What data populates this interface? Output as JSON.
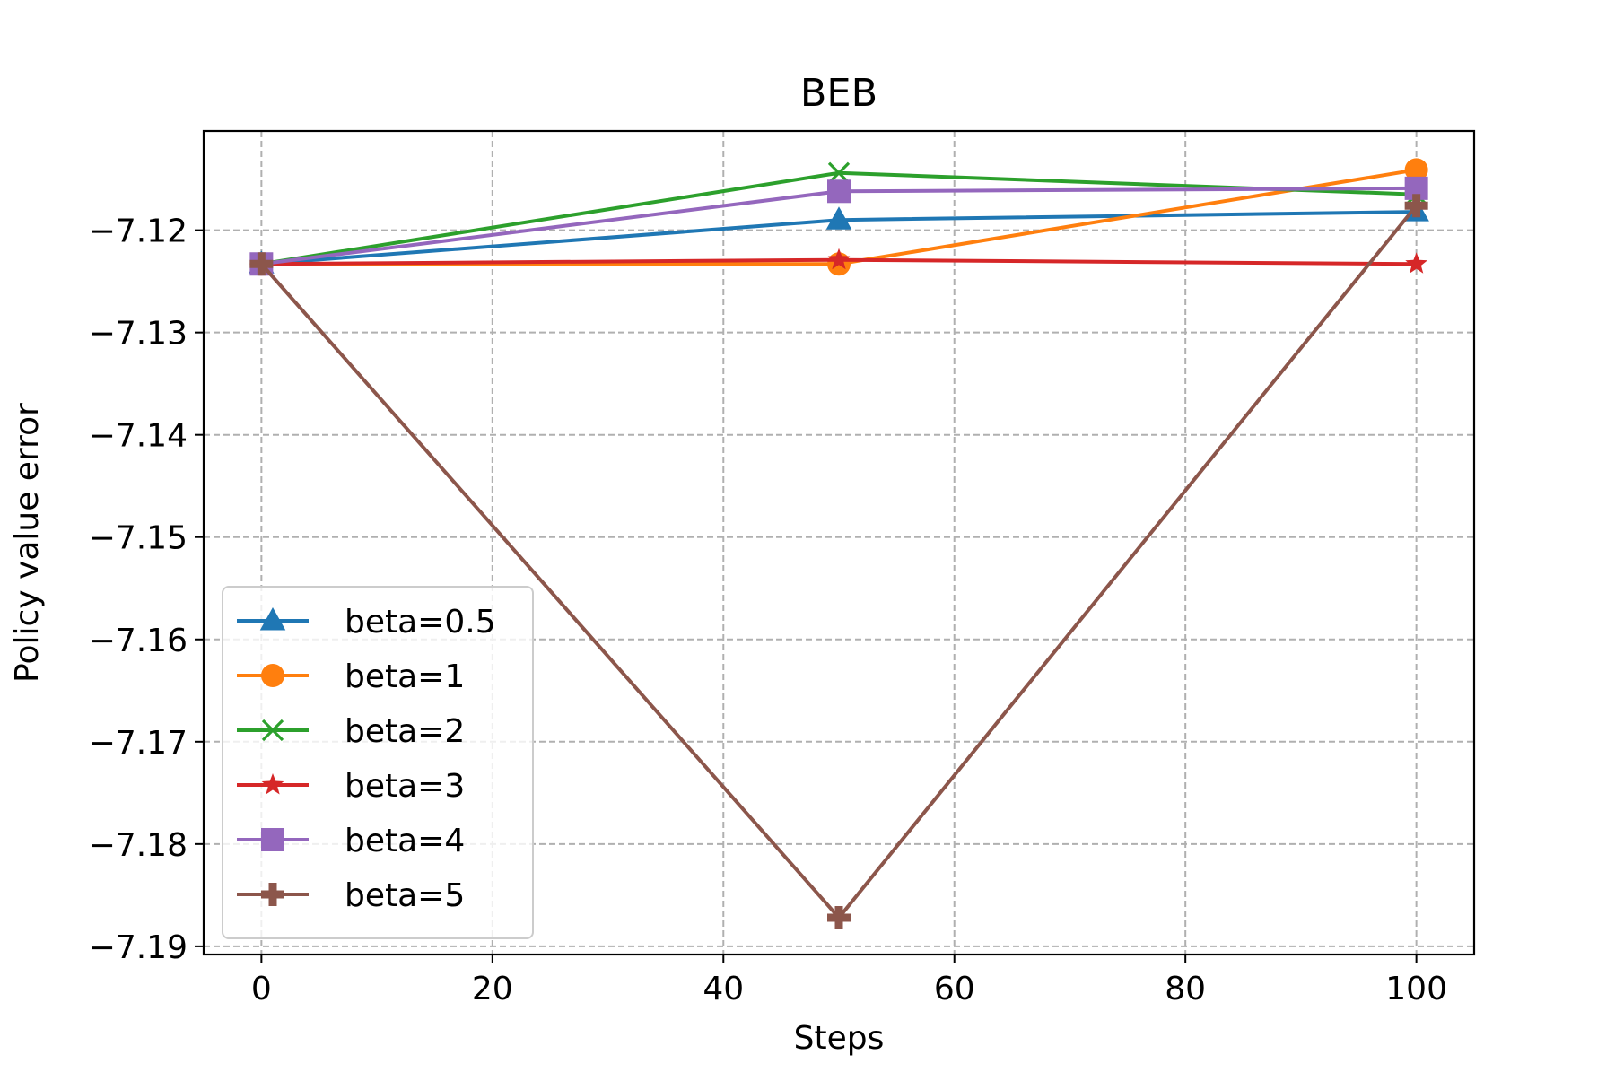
{
  "chart_data": {
    "type": "line",
    "title": "BEB",
    "xlabel": "Steps",
    "ylabel": "Policy value error",
    "xlim": [
      -5,
      105
    ],
    "ylim": [
      -7.1908,
      -7.1103
    ],
    "x": [
      0,
      50,
      100
    ],
    "xticks": [
      0,
      20,
      40,
      60,
      80,
      100
    ],
    "xtick_labels": [
      "0",
      "20",
      "40",
      "60",
      "80",
      "100"
    ],
    "yticks": [
      -7.12,
      -7.13,
      -7.14,
      -7.15,
      -7.16,
      -7.17,
      -7.18,
      -7.19
    ],
    "ytick_labels": [
      "−7.12",
      "−7.13",
      "−7.14",
      "−7.15",
      "−7.16",
      "−7.17",
      "−7.18",
      "−7.19"
    ],
    "grid": true,
    "legend_position": "lower-left",
    "series": [
      {
        "name": "beta=0.5",
        "values": [
          -7.1233,
          -7.119,
          -7.1182
        ],
        "color": "#1f77b4",
        "marker": "triangle"
      },
      {
        "name": "beta=1",
        "values": [
          -7.1233,
          -7.1233,
          -7.1141
        ],
        "color": "#ff7f0e",
        "marker": "circle"
      },
      {
        "name": "beta=2",
        "values": [
          -7.1233,
          -7.1144,
          -7.1165
        ],
        "color": "#2ca02c",
        "marker": "x"
      },
      {
        "name": "beta=3",
        "values": [
          -7.1233,
          -7.1229,
          -7.1233
        ],
        "color": "#d62728",
        "marker": "star"
      },
      {
        "name": "beta=4",
        "values": [
          -7.1233,
          -7.1162,
          -7.1159
        ],
        "color": "#9467bd",
        "marker": "square"
      },
      {
        "name": "beta=5",
        "values": [
          -7.1233,
          -7.1872,
          -7.1176
        ],
        "color": "#8c564b",
        "marker": "plus"
      }
    ]
  }
}
